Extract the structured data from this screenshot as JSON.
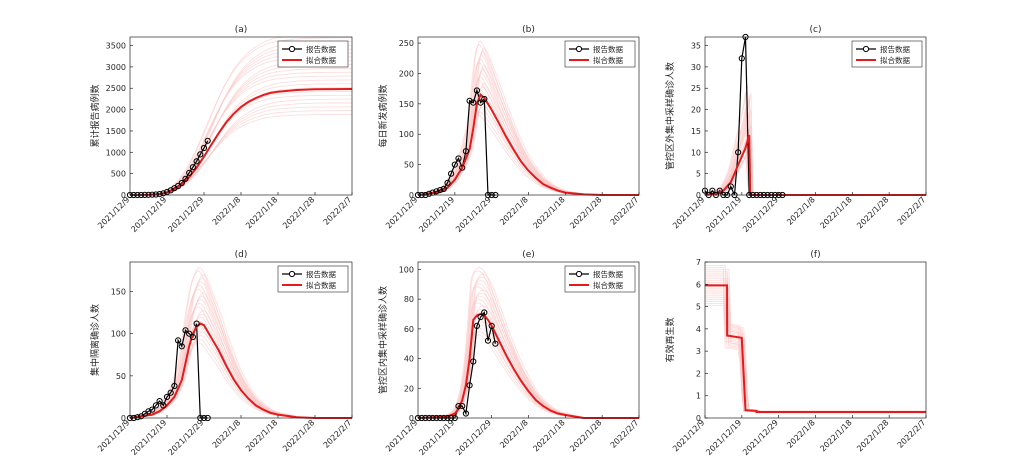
{
  "legend": {
    "reported": "报告数据",
    "fitted": "拟合数据"
  },
  "colors": {
    "reported": "#000000",
    "fitted": "#e41a1c",
    "band": "#f9c4c2",
    "axis": "#262626"
  },
  "chart_data": [
    {
      "type": "line",
      "title": "(a)",
      "ylabel": "累计报告病例数",
      "xticks": [
        "2021/12/9",
        "2021/12/19",
        "2021/12/29",
        "2022/1/8",
        "2022/1/18",
        "2022/1/28",
        "2022/2/7"
      ],
      "xlim": [
        0,
        60
      ],
      "ylim": [
        0,
        3700
      ],
      "yticks": [
        0,
        500,
        1000,
        1500,
        2000,
        2500,
        3000,
        3500
      ],
      "legend_pos": "top-right",
      "reported": {
        "name": "报告数据",
        "x": [
          0,
          1,
          2,
          3,
          4,
          5,
          6,
          7,
          8,
          9,
          10,
          11,
          12,
          13,
          14,
          15,
          16,
          17,
          18,
          19,
          20,
          21
        ],
        "y": [
          0,
          0,
          0,
          0,
          2,
          4,
          8,
          12,
          20,
          40,
          70,
          110,
          160,
          210,
          280,
          380,
          520,
          650,
          790,
          950,
          1100,
          1270
        ]
      },
      "fitted": {
        "name": "拟合数据",
        "x": [
          0,
          5,
          8,
          10,
          12,
          14,
          16,
          18,
          20,
          22,
          24,
          26,
          28,
          30,
          32,
          34,
          36,
          38,
          40,
          45,
          50,
          55,
          60
        ],
        "y": [
          0,
          5,
          20,
          60,
          130,
          250,
          420,
          640,
          900,
          1180,
          1450,
          1700,
          1900,
          2060,
          2180,
          2270,
          2340,
          2390,
          2420,
          2460,
          2475,
          2480,
          2482
        ]
      },
      "band": {
        "lower_scale": 0.76,
        "upper_scale": 1.52
      }
    },
    {
      "type": "line",
      "title": "(b)",
      "ylabel": "每日新发病例数",
      "xticks": [
        "2021/12/9",
        "2021/12/19",
        "2021/12/29",
        "2022/1/8",
        "2022/1/18",
        "2022/1/28",
        "2022/2/7"
      ],
      "xlim": [
        0,
        60
      ],
      "ylim": [
        0,
        260
      ],
      "yticks": [
        0,
        50,
        100,
        150,
        200,
        250
      ],
      "legend_pos": "top-right",
      "reported": {
        "name": "报告数据",
        "x": [
          0,
          1,
          2,
          3,
          4,
          5,
          6,
          7,
          8,
          9,
          10,
          11,
          12,
          13,
          14,
          15,
          16,
          17,
          18,
          19,
          20,
          21
        ],
        "y": [
          0,
          0,
          0,
          2,
          4,
          6,
          8,
          10,
          20,
          35,
          50,
          60,
          45,
          72,
          155,
          152,
          172,
          152,
          158,
          0,
          0,
          0
        ]
      },
      "fitted": {
        "name": "拟合数据",
        "x": [
          0,
          6,
          8,
          10,
          12,
          14,
          15,
          16,
          17,
          18,
          19,
          20,
          22,
          24,
          26,
          28,
          30,
          32,
          34,
          36,
          38,
          40,
          45,
          50,
          60
        ],
        "y": [
          0,
          5,
          12,
          25,
          45,
          75,
          110,
          150,
          165,
          160,
          150,
          140,
          118,
          95,
          74,
          55,
          40,
          28,
          18,
          12,
          7,
          4,
          1,
          0,
          0
        ]
      },
      "band": {
        "lower_scale": 0.8,
        "upper_scale": 1.55
      }
    },
    {
      "type": "line",
      "title": "(c)",
      "ylabel": "管控区外集中采样确诊人数",
      "xticks": [
        "2021/12/9",
        "2021/12/19",
        "2021/12/29",
        "2022/1/8",
        "2022/1/18",
        "2022/1/28",
        "2022/2/7"
      ],
      "xlim": [
        0,
        60
      ],
      "ylim": [
        0,
        37
      ],
      "yticks": [
        0,
        5,
        10,
        15,
        20,
        25,
        30,
        35
      ],
      "legend_pos": "top-right",
      "reported": {
        "name": "报告数据",
        "x": [
          0,
          1,
          2,
          3,
          4,
          5,
          6,
          7,
          8,
          9,
          10,
          11,
          12,
          13,
          14,
          15,
          16,
          17,
          18,
          19,
          20,
          21
        ],
        "y": [
          1,
          0,
          1,
          0,
          1,
          0,
          0,
          2,
          0,
          10,
          32,
          37,
          0,
          0,
          0,
          0,
          0,
          0,
          0,
          0,
          0,
          0
        ]
      },
      "fitted": {
        "name": "拟合数据",
        "x": [
          0,
          3,
          5,
          7,
          8,
          9,
          10,
          11,
          12,
          12.3,
          13,
          20,
          30,
          40,
          50,
          60
        ],
        "y": [
          0,
          0.3,
          1,
          3,
          5,
          7,
          9,
          11,
          14,
          0,
          0,
          0,
          0,
          0,
          0,
          0
        ]
      },
      "band": {
        "lower_scale": 0.7,
        "upper_scale": 1.9
      }
    },
    {
      "type": "line",
      "title": "(d)",
      "ylabel": "集中隔离确诊人数",
      "xticks": [
        "2021/12/9",
        "2021/12/19",
        "2021/12/29",
        "2022/1/8",
        "2022/1/18",
        "2022/1/28",
        "2022/2/7"
      ],
      "xlim": [
        0,
        60
      ],
      "ylim": [
        0,
        185
      ],
      "yticks": [
        0,
        50,
        100,
        150
      ],
      "legend_pos": "top-right",
      "reported": {
        "name": "报告数据",
        "x": [
          0,
          1,
          2,
          3,
          4,
          5,
          6,
          7,
          8,
          9,
          10,
          11,
          12,
          13,
          14,
          15,
          16,
          17,
          18,
          19,
          20,
          21
        ],
        "y": [
          0,
          0,
          1,
          2,
          5,
          8,
          10,
          15,
          20,
          15,
          25,
          30,
          38,
          92,
          85,
          104,
          100,
          96,
          112,
          0,
          0,
          0
        ]
      },
      "fitted": {
        "name": "拟合数据",
        "x": [
          0,
          6,
          8,
          10,
          12,
          14,
          15,
          16,
          17,
          18,
          19,
          20,
          22,
          24,
          26,
          28,
          30,
          32,
          34,
          36,
          38,
          40,
          45,
          50,
          60
        ],
        "y": [
          0,
          4,
          8,
          15,
          25,
          45,
          65,
          85,
          100,
          108,
          112,
          110,
          95,
          80,
          62,
          46,
          33,
          23,
          15,
          10,
          6,
          4,
          1,
          0,
          0
        ]
      },
      "band": {
        "lower_scale": 0.8,
        "upper_scale": 1.6
      }
    },
    {
      "type": "line",
      "title": "(e)",
      "ylabel": "管控区内集中采样确诊人数",
      "xticks": [
        "2021/12/9",
        "2021/12/19",
        "2021/12/29",
        "2022/1/8",
        "2022/1/18",
        "2022/1/28",
        "2022/2/7"
      ],
      "xlim": [
        0,
        60
      ],
      "ylim": [
        0,
        105
      ],
      "yticks": [
        0,
        20,
        40,
        60,
        80,
        100
      ],
      "legend_pos": "top-right",
      "reported": {
        "name": "报告数据",
        "x": [
          0,
          1,
          2,
          3,
          4,
          5,
          6,
          7,
          8,
          9,
          10,
          11,
          12,
          13,
          14,
          15,
          16,
          17,
          18,
          19,
          20,
          21
        ],
        "y": [
          0,
          0,
          0,
          0,
          0,
          0,
          0,
          0,
          0,
          0,
          0,
          8,
          8,
          3,
          22,
          38,
          62,
          68,
          71,
          52,
          62,
          50
        ]
      },
      "fitted": {
        "name": "拟合数据",
        "x": [
          0,
          8,
          10,
          11,
          12,
          13,
          14,
          15,
          16,
          17,
          18,
          19,
          20,
          22,
          24,
          26,
          28,
          30,
          32,
          34,
          36,
          38,
          40,
          45,
          50,
          60
        ],
        "y": [
          0,
          1,
          3,
          6,
          12,
          22,
          40,
          66,
          69,
          70,
          69,
          66,
          62,
          52,
          42,
          33,
          25,
          18,
          12,
          8,
          5,
          3,
          2,
          0,
          0,
          0
        ]
      },
      "band": {
        "lower_scale": 0.8,
        "upper_scale": 1.45
      }
    },
    {
      "type": "line",
      "title": "(f)",
      "ylabel": "有效再生数",
      "xticks": [
        "2021/12/9",
        "2021/12/19",
        "2021/12/29",
        "2022/1/8",
        "2022/1/18",
        "2022/1/28",
        "2022/2/7"
      ],
      "xlim": [
        0,
        60
      ],
      "ylim": [
        0,
        7
      ],
      "yticks": [
        0,
        1,
        2,
        3,
        4,
        5,
        6,
        7
      ],
      "legend_pos": "none",
      "fitted": {
        "name": "拟合数据",
        "x": [
          0,
          6,
          6,
          10,
          10,
          11,
          11,
          14,
          14,
          60
        ],
        "y": [
          5.95,
          5.95,
          3.7,
          3.6,
          3.55,
          0.35,
          0.35,
          0.32,
          0.27,
          0.27
        ]
      },
      "band": {
        "lower_scale": 0.85,
        "upper_scale": 1.15
      }
    }
  ]
}
